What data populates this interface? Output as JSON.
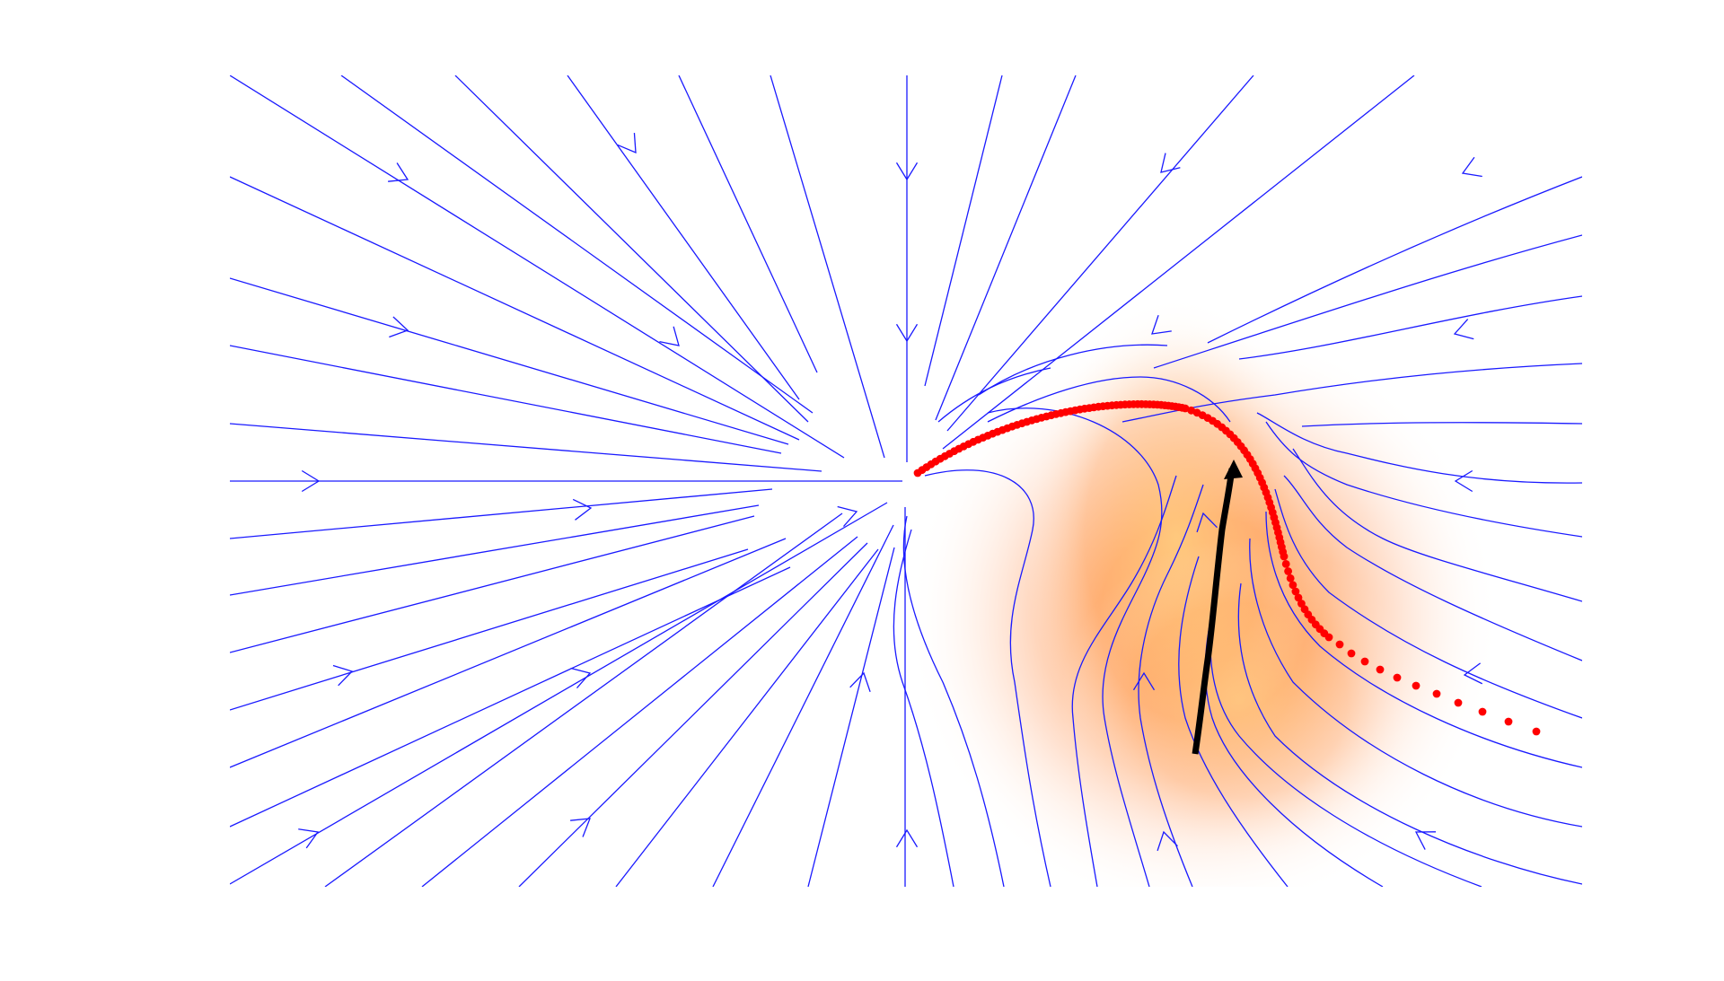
{
  "figure": {
    "kind": "vector-field-streamplot",
    "description_hidden": "",
    "colors": {
      "background": "#ffffff",
      "streamlines": "#1a1aff",
      "trajectory_dots": "#ff0000",
      "black_arrow": "#000000",
      "heat_low": "#ffffff",
      "heat_mid": "#ffb08a",
      "heat_high": "#ff9a55",
      "heat_core": "#ffc070"
    },
    "field": {
      "sink_point": [
        0.0,
        0.0
      ],
      "xlim": [
        -3.0,
        3.0
      ],
      "ylim": [
        -1.8,
        1.8
      ],
      "heat_center": [
        1.35,
        -0.6
      ],
      "heat_spread": [
        0.55,
        1.0
      ]
    },
    "trajectory_label": "",
    "arrow_label": ""
  }
}
